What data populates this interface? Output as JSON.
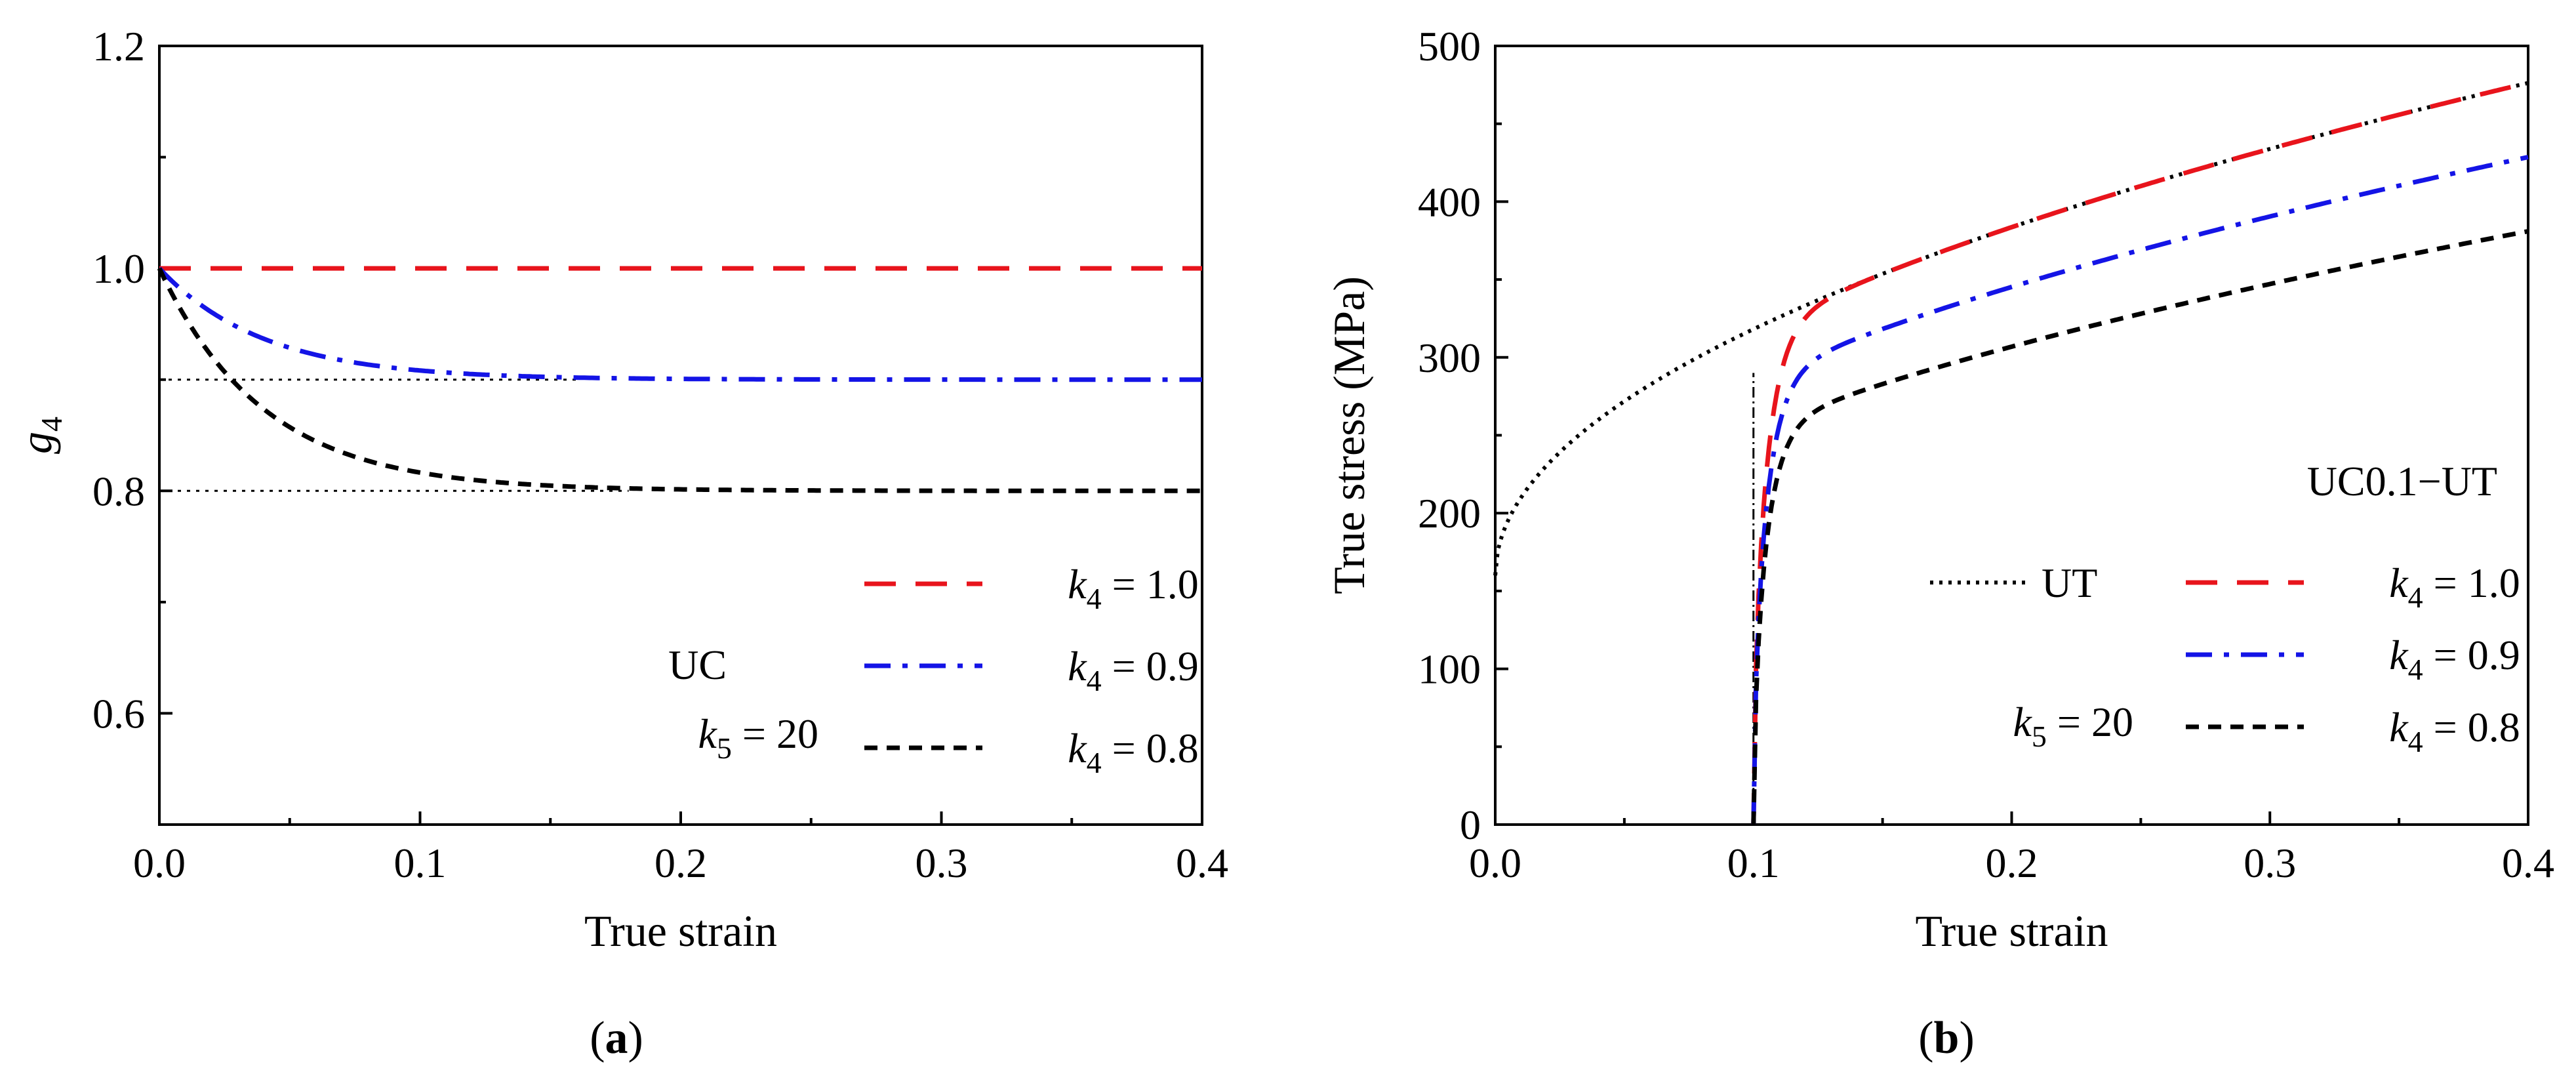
{
  "figure": {
    "panel_labels": [
      {
        "open": "(",
        "letter": "a",
        "close": ")"
      },
      {
        "open": "(",
        "letter": "b",
        "close": ")"
      }
    ]
  },
  "chart_data": [
    {
      "id": "a",
      "type": "line",
      "title": "",
      "xlabel": "True strain",
      "ylabel": {
        "base": "g",
        "sub": "4"
      },
      "xlim": [
        0.0,
        0.4
      ],
      "ylim": [
        0.5,
        1.2
      ],
      "xticks": [
        0.0,
        0.1,
        0.2,
        0.3,
        0.4
      ],
      "xtick_labels": [
        "0.0",
        "0.1",
        "0.2",
        "0.3",
        "0.4"
      ],
      "yticks": [
        0.6,
        0.8,
        1.0,
        1.2
      ],
      "ytick_labels": [
        "0.6",
        "0.8",
        "1.0",
        "1.2"
      ],
      "grid": false,
      "annotations": [
        {
          "text": "UC",
          "x": 0.08,
          "y": 0.63
        },
        {
          "base": "k",
          "sub": "5",
          "rest": " = 20",
          "x": 0.06,
          "y": 0.56
        }
      ],
      "reference_lines": [
        {
          "y": 0.9,
          "x_range": [
            0.0,
            0.16
          ],
          "style": "dotted",
          "color": "#000000"
        },
        {
          "y": 0.8,
          "x_range": [
            0.0,
            0.18
          ],
          "style": "dotted",
          "color": "#000000"
        }
      ],
      "series": [
        {
          "name": "k4 = 1.0",
          "legend": {
            "base": "k",
            "sub": "4",
            "rest": " = 1.0"
          },
          "color": "#e8141c",
          "dash": "dashed",
          "model": {
            "kind": "exp",
            "y0": 1.0,
            "yinf": 1.0,
            "tau": 0.04
          }
        },
        {
          "name": "k4 = 0.9",
          "legend": {
            "base": "k",
            "sub": "4",
            "rest": " = 0.9"
          },
          "color": "#1414e6",
          "dash": "dashdot",
          "model": {
            "kind": "exp",
            "y0": 1.0,
            "yinf": 0.9,
            "tau": 0.04
          }
        },
        {
          "name": "k4 = 0.8",
          "legend": {
            "base": "k",
            "sub": "4",
            "rest": " = 0.8"
          },
          "color": "#000000",
          "dash": "shortdash",
          "model": {
            "kind": "exp",
            "y0": 1.0,
            "yinf": 0.8,
            "tau": 0.04
          }
        }
      ],
      "legend_position": "bottom-right"
    },
    {
      "id": "b",
      "type": "line",
      "title": "",
      "xlabel": "True strain",
      "ylabel": "True stress (MPa)",
      "xlim": [
        0.0,
        0.4
      ],
      "ylim": [
        0,
        500
      ],
      "xticks": [
        0.0,
        0.1,
        0.2,
        0.3,
        0.4
      ],
      "xtick_labels": [
        "0.0",
        "0.1",
        "0.2",
        "0.3",
        "0.4"
      ],
      "yticks": [
        0,
        100,
        200,
        300,
        400,
        500
      ],
      "ytick_labels": [
        "0",
        "100",
        "200",
        "300",
        "400",
        "500"
      ],
      "grid": false,
      "annotations": [
        {
          "text": "UC0.1−UT",
          "x": 0.39,
          "y": 212
        },
        {
          "base": "k",
          "sub": "5",
          "rest": " = 20",
          "x": 0.2,
          "y": 52
        }
      ],
      "reference_lines": [
        {
          "x": 0.1,
          "y_range": [
            0,
            290
          ],
          "style": "dashdot-thin",
          "color": "#000000"
        }
      ],
      "series": [
        {
          "name": "UT",
          "legend": {
            "text": "UT"
          },
          "color": "#000000",
          "dash": "dotted",
          "model": {
            "kind": "power",
            "A": 160,
            "B": 500,
            "n": 0.5,
            "x0": 0.0
          }
        },
        {
          "name": "k4 = 1.0",
          "legend": {
            "base": "k",
            "sub": "4",
            "rest": " = 1.0"
          },
          "color": "#e8141c",
          "dash": "dashed",
          "model": {
            "kind": "reload",
            "x0": 0.1,
            "eyield": 0.028,
            "target": 1.0
          }
        },
        {
          "name": "k4 = 0.9",
          "legend": {
            "base": "k",
            "sub": "4",
            "rest": " = 0.9"
          },
          "color": "#1414e6",
          "dash": "dashdot",
          "model": {
            "kind": "reload",
            "x0": 0.1,
            "eyield": 0.028,
            "target": 0.9
          }
        },
        {
          "name": "k4 = 0.8",
          "legend": {
            "base": "k",
            "sub": "4",
            "rest": " = 0.8"
          },
          "color": "#000000",
          "dash": "shortdash",
          "model": {
            "kind": "reload",
            "x0": 0.1,
            "eyield": 0.028,
            "target": 0.8
          }
        }
      ],
      "legend_position": "bottom-right"
    }
  ]
}
